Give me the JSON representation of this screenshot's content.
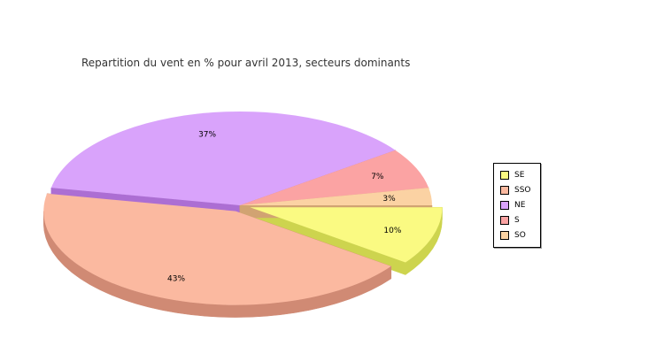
{
  "chart_data": {
    "type": "pie",
    "title": "Repartition du vent en % pour avril 2013, secteurs dominants",
    "style": "3d-exploded",
    "slices": [
      {
        "name": "SE",
        "value": 10,
        "label": "10%",
        "color": "#fafa82",
        "side_color": "#cdd44e"
      },
      {
        "name": "SSO",
        "value": 43,
        "label": "43%",
        "color": "#fbb9a0",
        "side_color": "#d08a74"
      },
      {
        "name": "NE",
        "value": 37,
        "label": "37%",
        "color": "#d9a3fb",
        "side_color": "#ac6ed3"
      },
      {
        "name": "S",
        "value": 7,
        "label": "7%",
        "color": "#fba3a3",
        "side_color": "#c97878"
      },
      {
        "name": "SO",
        "value": 3,
        "label": "3%",
        "color": "#fbd2a3",
        "side_color": "#d1a372"
      }
    ],
    "legend_position": "right"
  }
}
